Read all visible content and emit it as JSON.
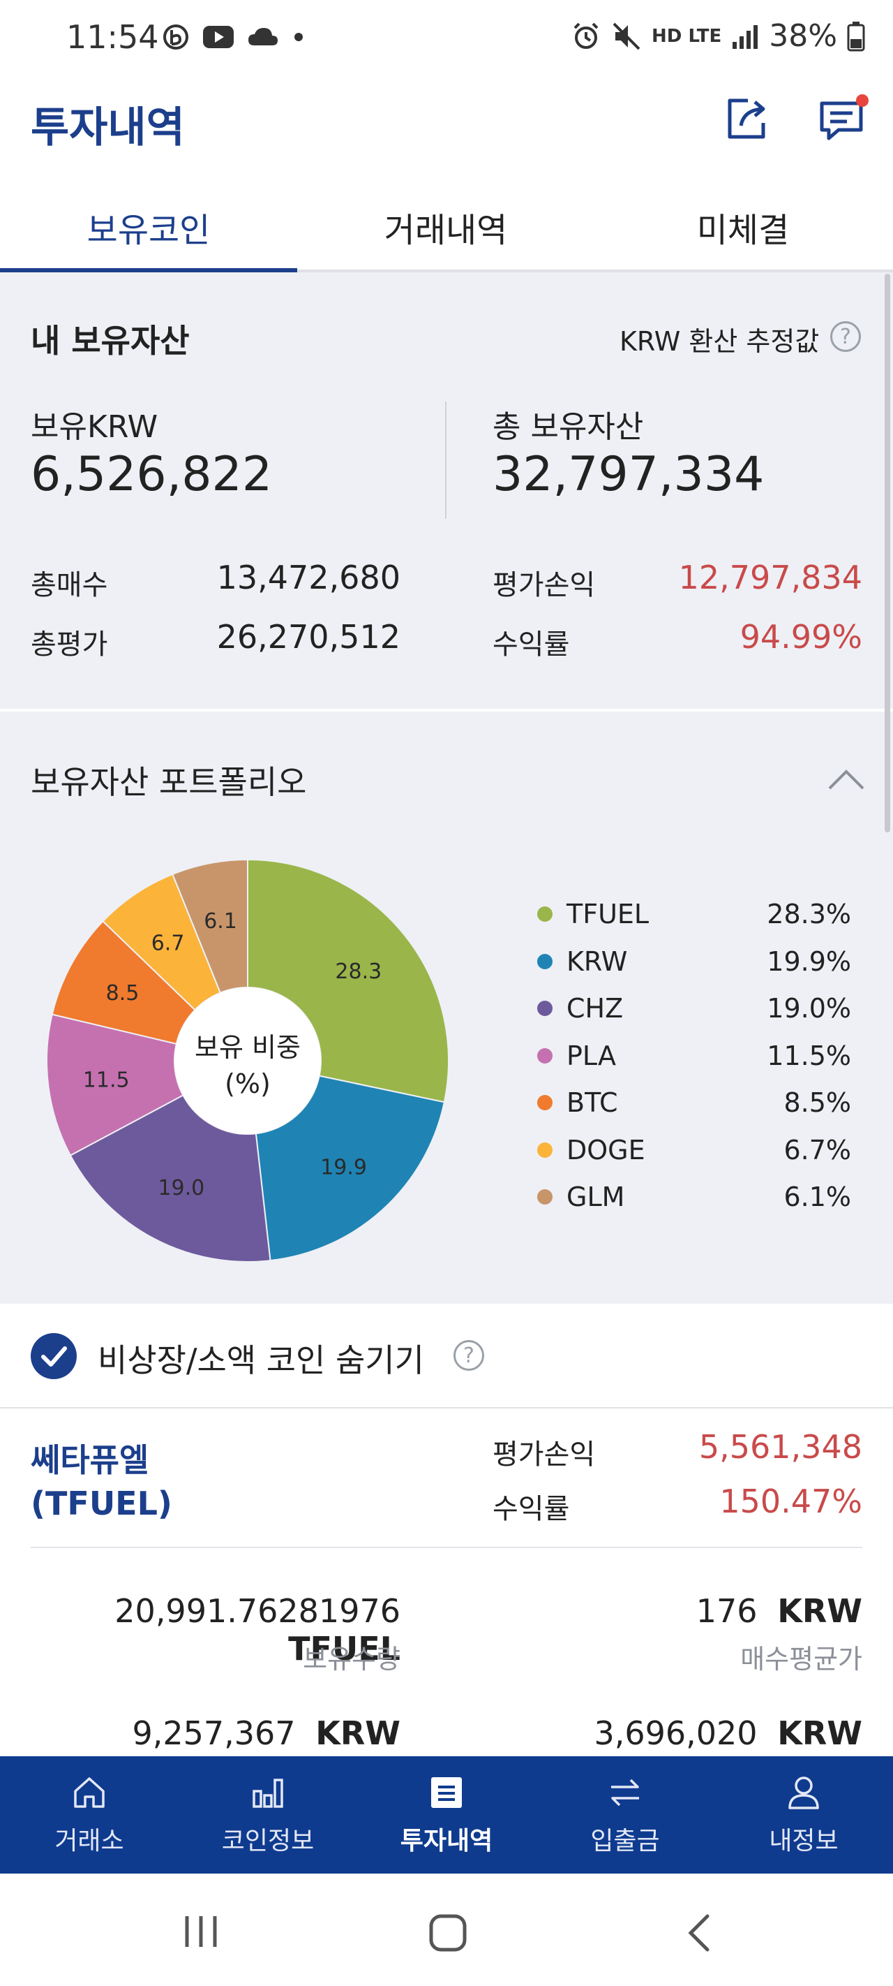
{
  "status_bar": {
    "time": "11:54",
    "battery": "38%",
    "network": "HD LTE"
  },
  "header": {
    "title": "투자내역",
    "share_icon": "share-icon",
    "message_icon": "message-icon"
  },
  "tabs": [
    {
      "label": "보유코인",
      "active": true
    },
    {
      "label": "거래내역",
      "active": false
    },
    {
      "label": "미체결",
      "active": false
    }
  ],
  "assets": {
    "title": "내 보유자산",
    "estimate_label": "KRW 환산 추정값",
    "krw_label": "보유KRW",
    "krw_value": "6,526,822",
    "total_label": "총 보유자산",
    "total_value": "32,797,334",
    "total_buy_label": "총매수",
    "total_buy_value": "13,472,680",
    "total_eval_label": "총평가",
    "total_eval_value": "26,270,512",
    "pnl_label": "평가손익",
    "pnl_value": "12,797,834",
    "return_label": "수익률",
    "return_value": "94.99%"
  },
  "portfolio": {
    "title": "보유자산 포트폴리오",
    "center_label_1": "보유 비중",
    "center_label_2": "(%)",
    "chart_data": {
      "type": "pie",
      "categories": [
        "TFUEL",
        "KRW",
        "CHZ",
        "PLA",
        "BTC",
        "DOGE",
        "GLM"
      ],
      "values": [
        28.3,
        19.9,
        19.0,
        11.5,
        8.5,
        6.7,
        6.1
      ],
      "slice_labels": [
        "28.3",
        "19.9",
        "19.0",
        "11.5",
        "8.5",
        "6.7",
        "6.1"
      ],
      "legend_pct": [
        "28.3%",
        "19.9%",
        "19.0%",
        "11.5%",
        "8.5%",
        "6.7%",
        "6.1%"
      ],
      "colors": [
        "#9ab54a",
        "#1f84b4",
        "#6d5a9c",
        "#c571b0",
        "#f07a2d",
        "#fbb33a",
        "#c8956b"
      ],
      "legend_position": "right"
    }
  },
  "hide_small": {
    "label": "비상장/소액 코인 숨기기",
    "checked": true
  },
  "coin": {
    "name_line1": "쎄타퓨엘",
    "name_line2": "(TFUEL)",
    "pnl_label": "평가손익",
    "pnl_value": "5,561,348",
    "return_label": "수익률",
    "return_value": "150.47%",
    "qty_value": "20,991.76281976",
    "qty_unit": "TFUEL",
    "qty_label": "보유수량",
    "avg_value": "176",
    "avg_unit": "KRW",
    "avg_label": "매수평균가",
    "eval_value": "9,257,367",
    "eval_unit": "KRW",
    "buy_value": "3,696,020",
    "buy_unit": "KRW"
  },
  "bottom_nav": [
    {
      "label": "거래소",
      "icon": "home-icon",
      "active": false
    },
    {
      "label": "코인정보",
      "icon": "bar-chart-icon",
      "active": false
    },
    {
      "label": "투자내역",
      "icon": "list-icon",
      "active": true
    },
    {
      "label": "입출금",
      "icon": "transfer-icon",
      "active": false
    },
    {
      "label": "내정보",
      "icon": "person-icon",
      "active": false
    }
  ]
}
